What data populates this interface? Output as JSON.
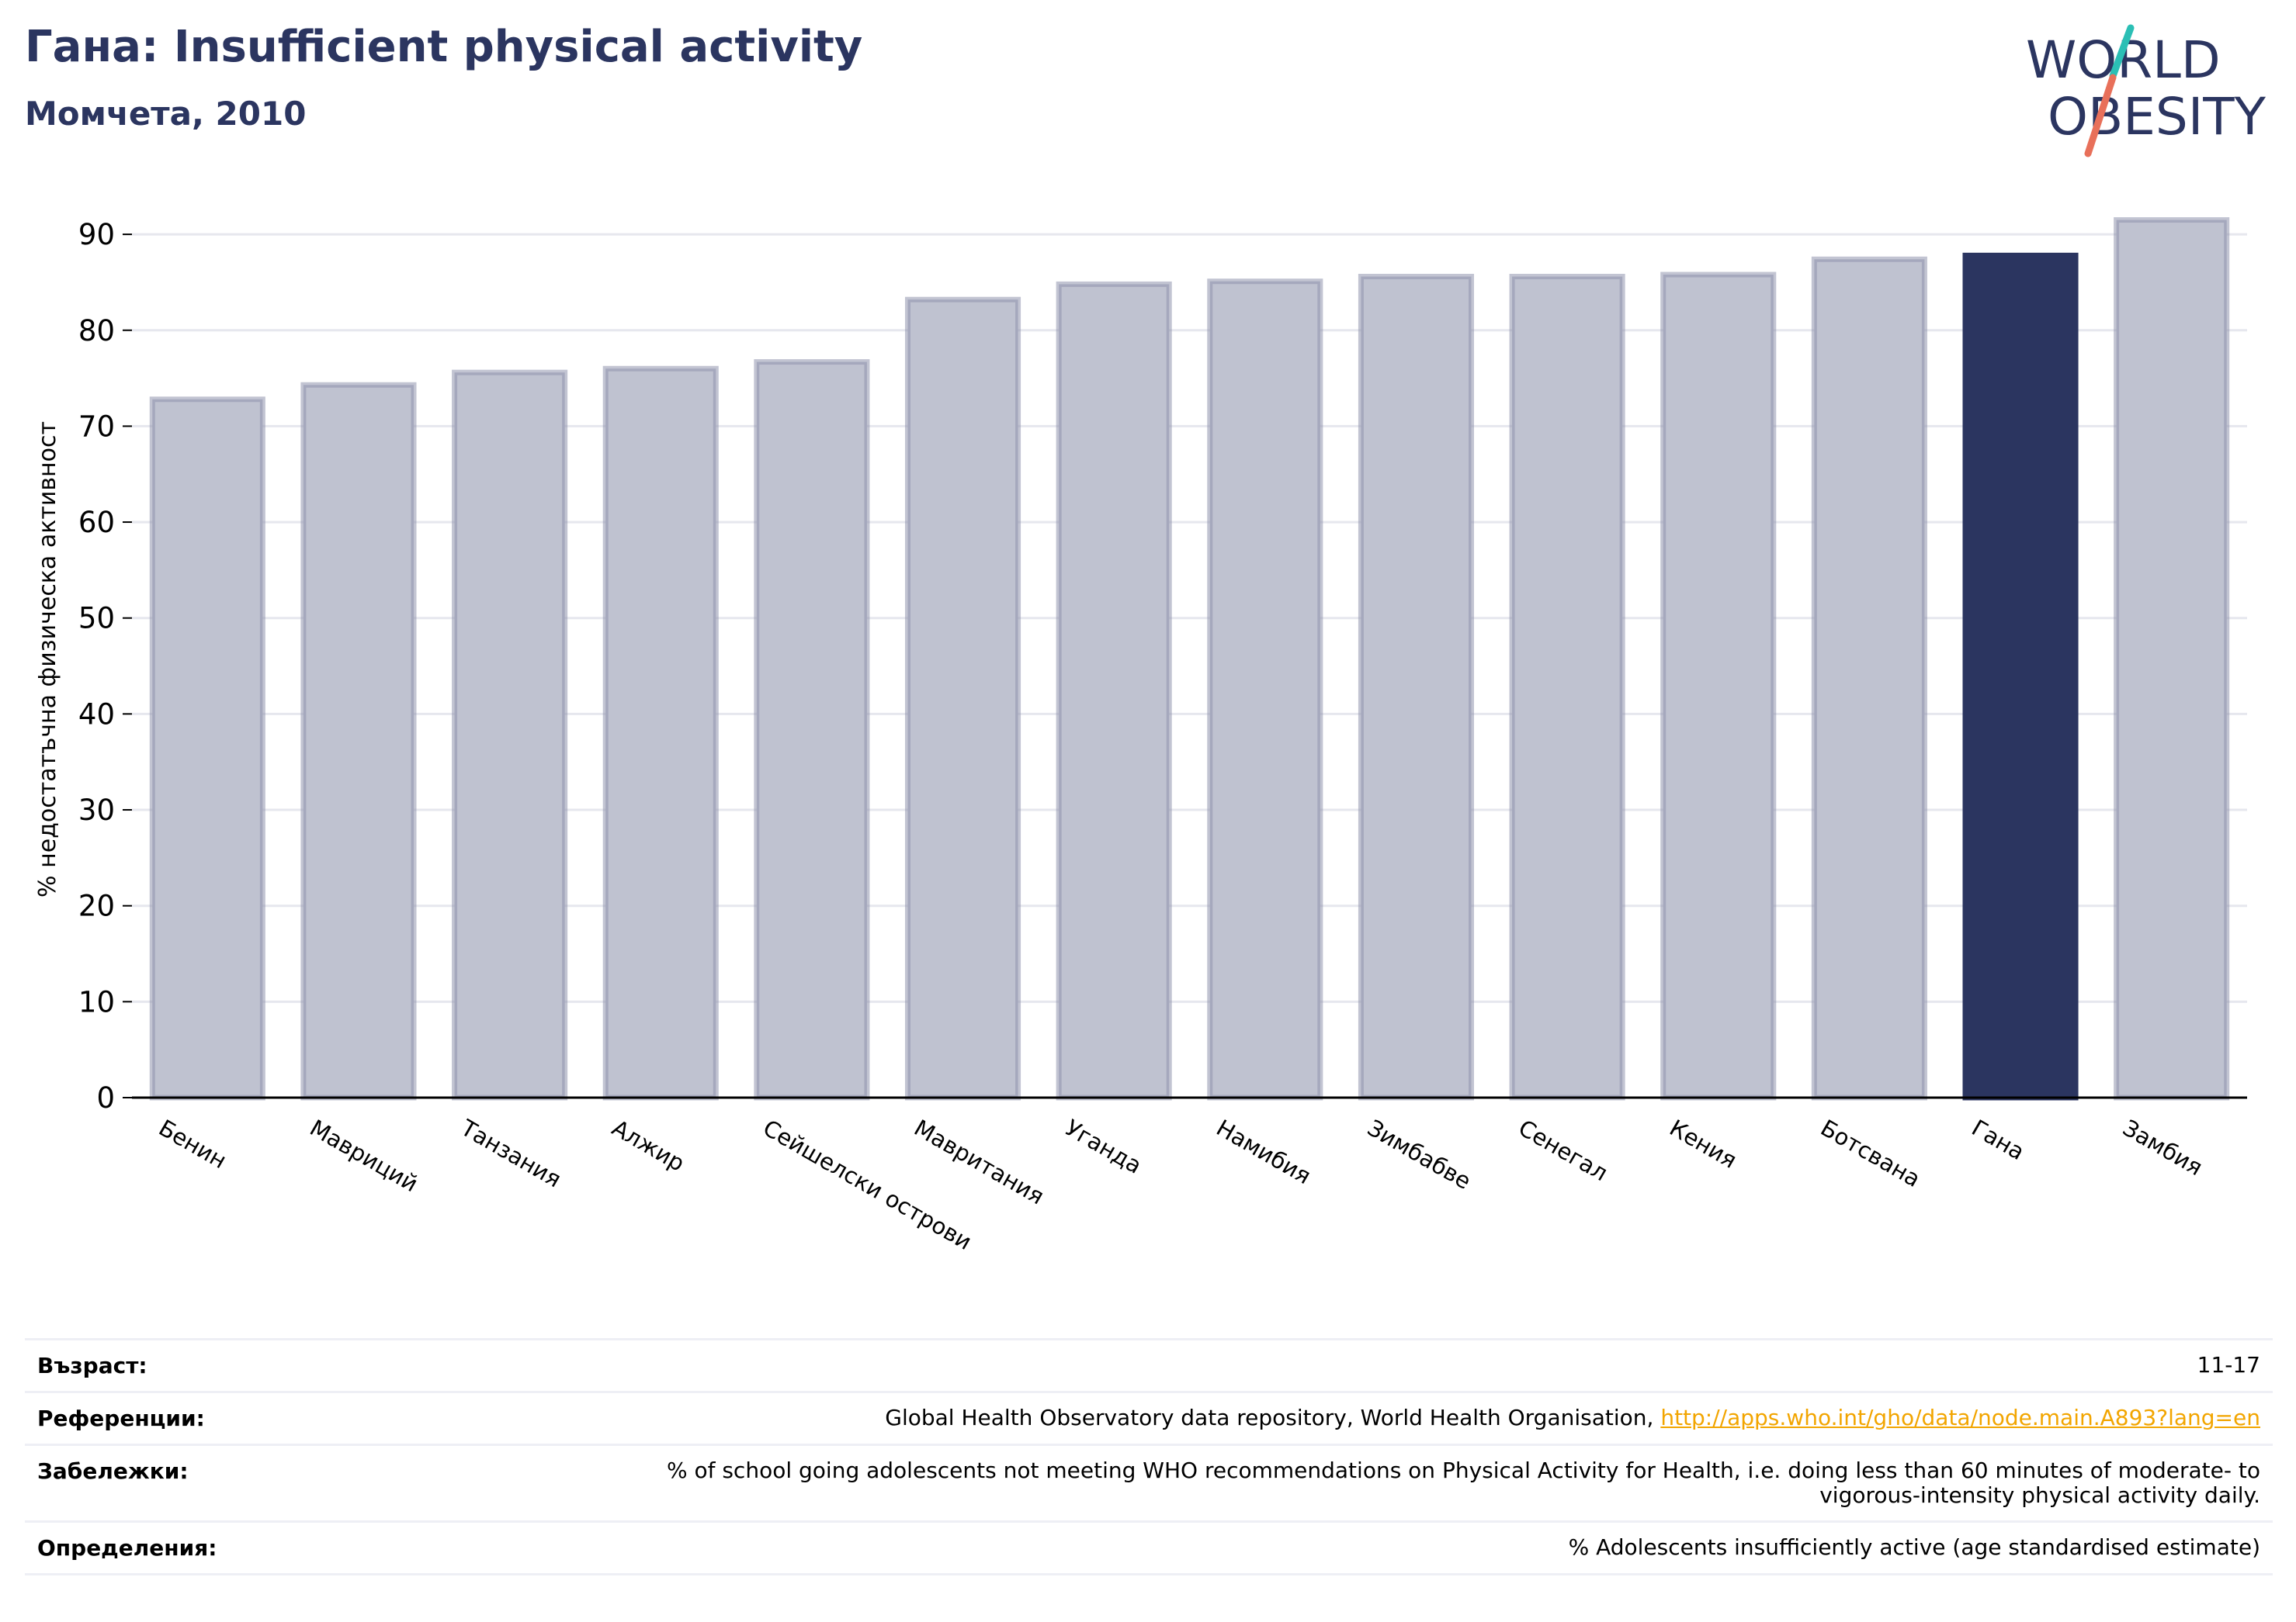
{
  "header": {
    "title": "Гана: Insufficient physical activity",
    "subtitle": "Момчета, 2010"
  },
  "logo": {
    "line1": "WORLD",
    "line2": "OBESITY",
    "colors": {
      "text": "#2b3560",
      "slash_top": "#2bbfb5",
      "slash_bottom": "#e8705a"
    }
  },
  "colors": {
    "bar_default": "#bfc2d0",
    "bar_default_edge": "#8f94ad",
    "bar_highlight": "#2b3560",
    "grid": "#e6e7ee",
    "axis": "#000000"
  },
  "chart_data": {
    "type": "bar",
    "title": "",
    "xlabel": "",
    "ylabel": "% недостатъчна физическа активност",
    "ylim": [
      0,
      93
    ],
    "yticks": [
      0,
      10,
      20,
      30,
      40,
      50,
      60,
      70,
      80,
      90
    ],
    "grid": true,
    "highlight": "Гана",
    "categories": [
      "Бенин",
      "Мавриций",
      "Танзания",
      "Алжир",
      "Сейшелски острови",
      "Мавритания",
      "Уганда",
      "Намибия",
      "Зимбабве",
      "Сенегал",
      "Кения",
      "Ботсвана",
      "Гана",
      "Замбия"
    ],
    "values": [
      72.8,
      74.3,
      75.6,
      76.0,
      76.7,
      83.2,
      84.8,
      85.1,
      85.6,
      85.6,
      85.8,
      87.4,
      87.8,
      91.5
    ]
  },
  "meta": {
    "rows": [
      {
        "label": "Възраст:",
        "value": "11-17"
      },
      {
        "label": "Референции:",
        "value": "Global Health Observatory data repository, World Health Organisation, ",
        "link": "http://apps.who.int/gho/data/node.main.A893?lang=en"
      },
      {
        "label": "Забележки:",
        "value": "% of school going adolescents not meeting WHO recommendations on Physical Activity for Health, i.e. doing less than 60 minutes of moderate- to vigorous-intensity physical activity daily."
      },
      {
        "label": "Определения:",
        "value": "% Adolescents insufficiently active (age standardised estimate)"
      }
    ]
  }
}
